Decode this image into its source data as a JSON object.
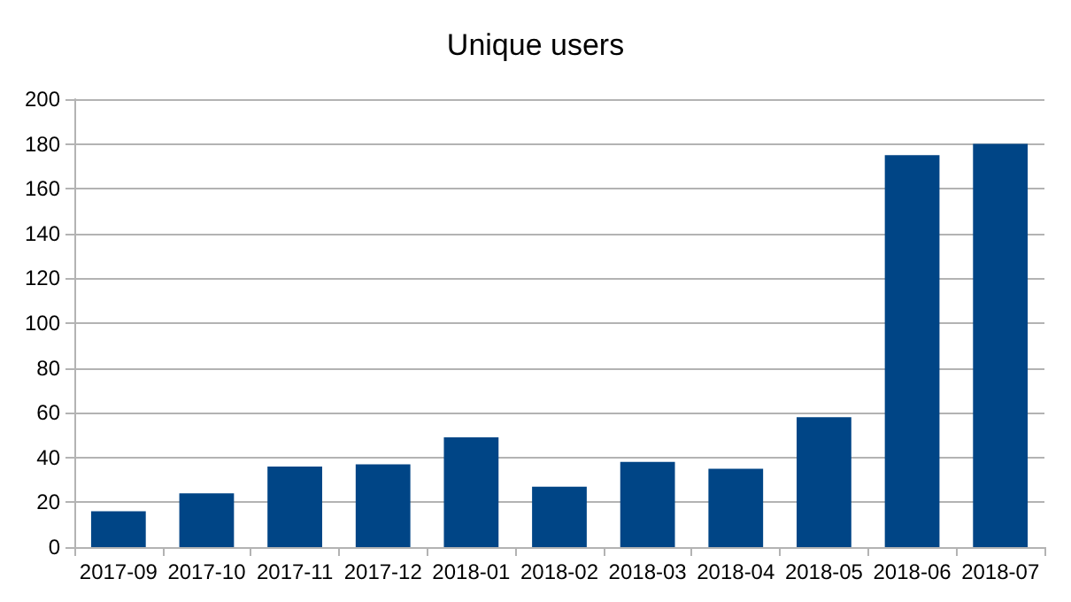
{
  "chart_data": {
    "type": "bar",
    "title": "Unique users",
    "categories": [
      "2017-09",
      "2017-10",
      "2017-11",
      "2017-12",
      "2018-01",
      "2018-02",
      "2018-03",
      "2018-04",
      "2018-05",
      "2018-06",
      "2018-07"
    ],
    "values": [
      16,
      24,
      36,
      37,
      49,
      27,
      38,
      35,
      58,
      175,
      180
    ],
    "color": "#004586",
    "ylim": [
      0,
      200
    ],
    "yticks": [
      0,
      20,
      40,
      60,
      80,
      100,
      120,
      140,
      160,
      180,
      200
    ],
    "grid": "y"
  }
}
